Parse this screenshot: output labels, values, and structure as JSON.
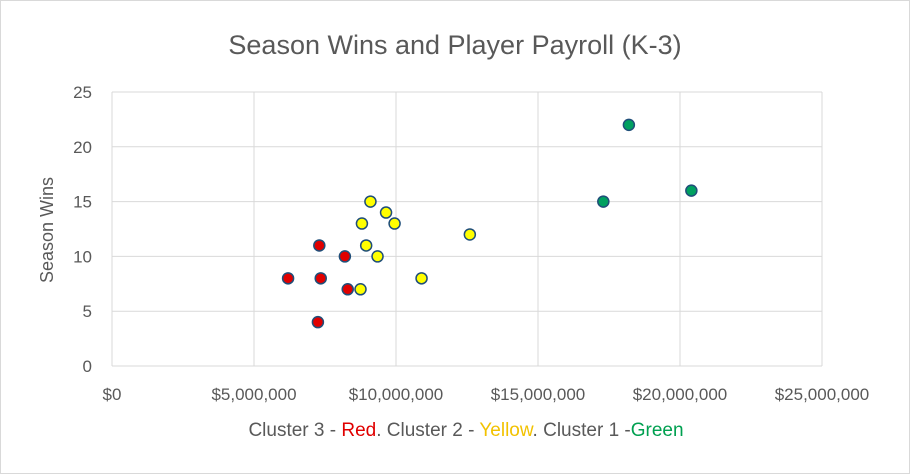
{
  "chart_data": {
    "type": "scatter",
    "title": "Season Wins and Player Payroll (K-3)",
    "ylabel": "Season Wins",
    "xlabel_parts": [
      {
        "text": "Cluster 3 - ",
        "color": "#595959"
      },
      {
        "text": "Red",
        "color": "#e00000"
      },
      {
        "text": ". Cluster 2 - ",
        "color": "#595959"
      },
      {
        "text": "Yellow",
        "color": "#f2c200"
      },
      {
        "text": ". Cluster 1 -",
        "color": "#595959"
      },
      {
        "text": "Green",
        "color": "#00a050"
      }
    ],
    "xlim": [
      0,
      25000000
    ],
    "ylim": [
      0,
      25
    ],
    "x_ticks": [
      0,
      5000000,
      10000000,
      15000000,
      20000000,
      25000000
    ],
    "x_tick_labels": [
      "$0",
      "$5,000,000",
      "$10,000,000",
      "$15,000,000",
      "$20,000,000",
      "$25,000,000"
    ],
    "y_ticks": [
      0,
      5,
      10,
      15,
      20,
      25
    ],
    "y_tick_labels": [
      "0",
      "5",
      "10",
      "15",
      "20",
      "25"
    ],
    "grid": true,
    "marker_edge_color": "#1f4e79",
    "series": [
      {
        "color": "#e00000",
        "points": [
          {
            "x": 6200000,
            "y": 8
          },
          {
            "x": 7250000,
            "y": 4
          },
          {
            "x": 7300000,
            "y": 11
          },
          {
            "x": 7350000,
            "y": 8
          },
          {
            "x": 8200000,
            "y": 10
          },
          {
            "x": 8300000,
            "y": 7
          }
        ]
      },
      {
        "color": "#ffff00",
        "points": [
          {
            "x": 8750000,
            "y": 7
          },
          {
            "x": 8800000,
            "y": 13
          },
          {
            "x": 8950000,
            "y": 11
          },
          {
            "x": 9100000,
            "y": 15
          },
          {
            "x": 9350000,
            "y": 10
          },
          {
            "x": 9650000,
            "y": 14
          },
          {
            "x": 9950000,
            "y": 13
          },
          {
            "x": 10900000,
            "y": 8
          },
          {
            "x": 12600000,
            "y": 12
          }
        ]
      },
      {
        "color": "#00a060",
        "points": [
          {
            "x": 17300000,
            "y": 15
          },
          {
            "x": 18200000,
            "y": 22
          },
          {
            "x": 20400000,
            "y": 16
          }
        ]
      }
    ]
  }
}
